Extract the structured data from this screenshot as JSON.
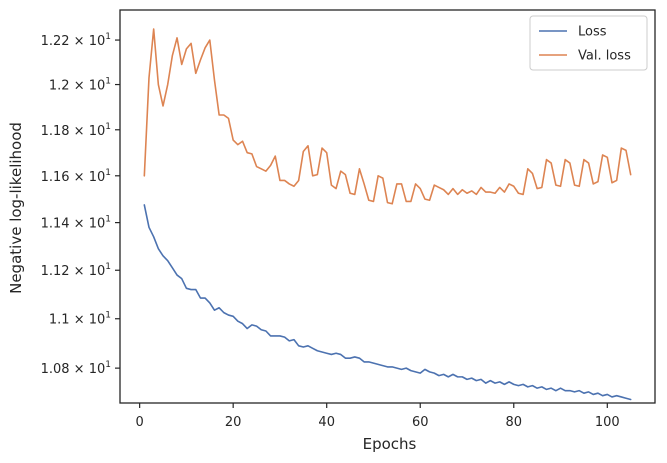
{
  "chart_data": {
    "type": "line",
    "xlabel": "Epochs",
    "ylabel": "Negative log-likelihood",
    "xlim": [
      -4.2,
      110.2
    ],
    "ylim": [
      10.661,
      12.337
    ],
    "y_scale": "log",
    "grid": false,
    "legend_placement": "top-right",
    "x_ticks": [
      0,
      20,
      40,
      60,
      80,
      100
    ],
    "x_tick_labels": [
      "0",
      "20",
      "40",
      "60",
      "80",
      "100"
    ],
    "y_ticks": [
      {
        "value": 10.8,
        "mantissa": "1.08",
        "base": "10",
        "exp": "1"
      },
      {
        "value": 11.0,
        "mantissa": "1.1",
        "base": "10",
        "exp": "1"
      },
      {
        "value": 11.2,
        "mantissa": "1.12",
        "base": "10",
        "exp": "1"
      },
      {
        "value": 11.4,
        "mantissa": "1.14",
        "base": "10",
        "exp": "1"
      },
      {
        "value": 11.6,
        "mantissa": "1.16",
        "base": "10",
        "exp": "1"
      },
      {
        "value": 11.8,
        "mantissa": "1.18",
        "base": "10",
        "exp": "1"
      },
      {
        "value": 12.0,
        "mantissa": "1.2",
        "base": "10",
        "exp": "1"
      },
      {
        "value": 12.2,
        "mantissa": "1.22",
        "base": "10",
        "exp": "1"
      }
    ],
    "series": [
      {
        "name": "Loss",
        "color": "#4c72b0",
        "x_start": 1,
        "values": [
          11.475,
          11.38,
          11.34,
          11.29,
          11.26,
          11.24,
          11.21,
          11.18,
          11.165,
          11.125,
          11.12,
          11.12,
          11.085,
          11.085,
          11.065,
          11.035,
          11.045,
          11.025,
          11.015,
          11.01,
          10.99,
          10.98,
          10.96,
          10.975,
          10.97,
          10.955,
          10.95,
          10.93,
          10.93,
          10.93,
          10.925,
          10.91,
          10.915,
          10.89,
          10.885,
          10.89,
          10.88,
          10.87,
          10.865,
          10.86,
          10.855,
          10.86,
          10.855,
          10.84,
          10.84,
          10.845,
          10.84,
          10.825,
          10.825,
          10.82,
          10.815,
          10.81,
          10.805,
          10.805,
          10.8,
          10.795,
          10.8,
          10.79,
          10.785,
          10.78,
          10.795,
          10.785,
          10.78,
          10.77,
          10.775,
          10.765,
          10.775,
          10.765,
          10.765,
          10.755,
          10.76,
          10.75,
          10.755,
          10.74,
          10.75,
          10.74,
          10.745,
          10.735,
          10.745,
          10.735,
          10.73,
          10.735,
          10.725,
          10.73,
          10.72,
          10.725,
          10.715,
          10.72,
          10.71,
          10.72,
          10.71,
          10.71,
          10.705,
          10.71,
          10.7,
          10.705,
          10.695,
          10.7,
          10.69,
          10.695,
          10.685,
          10.69,
          10.685,
          10.68,
          10.675
        ]
      },
      {
        "name": "Val. loss",
        "color": "#dd8452",
        "x_start": 1,
        "values": [
          11.6,
          12.03,
          12.25,
          12.0,
          11.905,
          12.0,
          12.13,
          12.21,
          12.09,
          12.16,
          12.185,
          12.05,
          12.11,
          12.165,
          12.2,
          12.02,
          11.865,
          11.865,
          11.85,
          11.755,
          11.735,
          11.75,
          11.7,
          11.695,
          11.64,
          11.63,
          11.62,
          11.645,
          11.685,
          11.58,
          11.58,
          11.565,
          11.555,
          11.58,
          11.705,
          11.73,
          11.6,
          11.605,
          11.72,
          11.7,
          11.56,
          11.545,
          11.62,
          11.605,
          11.525,
          11.52,
          11.63,
          11.565,
          11.495,
          11.49,
          11.6,
          11.59,
          11.485,
          11.48,
          11.565,
          11.565,
          11.49,
          11.49,
          11.565,
          11.545,
          11.5,
          11.495,
          11.56,
          11.55,
          11.54,
          11.52,
          11.545,
          11.52,
          11.54,
          11.525,
          11.535,
          11.52,
          11.55,
          11.53,
          11.53,
          11.525,
          11.55,
          11.53,
          11.565,
          11.555,
          11.525,
          11.52,
          11.63,
          11.61,
          11.545,
          11.55,
          11.67,
          11.655,
          11.56,
          11.555,
          11.67,
          11.655,
          11.56,
          11.555,
          11.67,
          11.655,
          11.565,
          11.575,
          11.69,
          11.68,
          11.57,
          11.58,
          11.72,
          11.71,
          11.605
        ]
      }
    ]
  }
}
